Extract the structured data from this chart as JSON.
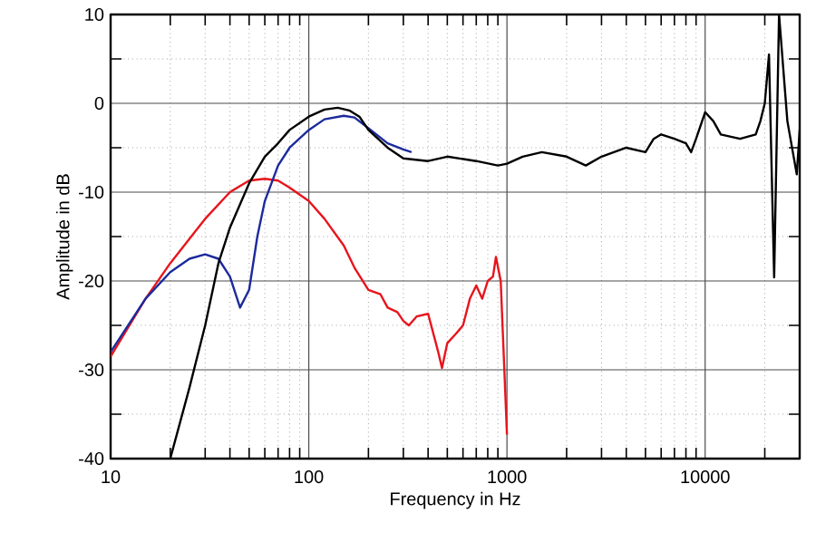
{
  "chart_data": {
    "type": "line",
    "xlabel": "Frequency in Hz",
    "ylabel": "Amplitude in dB",
    "log": "x",
    "xlim": [
      10,
      30000
    ],
    "xticks": [
      10,
      100,
      1000,
      10000
    ],
    "ylim": [
      -40,
      10
    ],
    "yticks": [
      -40,
      -30,
      -20,
      -10,
      0,
      10
    ],
    "grid": true,
    "marker": "none",
    "line_style": "solid",
    "series": [
      {
        "color": "#e8141c",
        "x": [
          10,
          15,
          20,
          30,
          40,
          50,
          60,
          70,
          80,
          100,
          120,
          150,
          170,
          200,
          230,
          250,
          280,
          300,
          320,
          350,
          400,
          450,
          470,
          500,
          550,
          600,
          650,
          700,
          750,
          800,
          850,
          880,
          930,
          970,
          1000
        ],
        "values": [
          -28.5,
          -22,
          -18,
          -13,
          -10,
          -8.7,
          -8.5,
          -8.7,
          -9.5,
          -11,
          -13,
          -16,
          -18.5,
          -21,
          -21.5,
          -23,
          -23.5,
          -24.5,
          -25,
          -24,
          -23.7,
          -28,
          -29.8,
          -27,
          -26,
          -25,
          -22,
          -20.5,
          -22,
          -20,
          -19.5,
          -17.3,
          -20,
          -30,
          -37.3
        ]
      },
      {
        "color": "#1c2a9c",
        "x": [
          10,
          15,
          20,
          25,
          30,
          35,
          40,
          45,
          50,
          55,
          60,
          70,
          80,
          100,
          120,
          150,
          170,
          200,
          250,
          300,
          330
        ],
        "values": [
          -28,
          -22,
          -19,
          -17.5,
          -17,
          -17.5,
          -19.5,
          -23,
          -21,
          -15,
          -11,
          -7,
          -5,
          -3,
          -1.8,
          -1.4,
          -1.6,
          -2.8,
          -4.5,
          -5.2,
          -5.5
        ]
      },
      {
        "color": "#000000",
        "x": [
          20,
          25,
          30,
          35,
          40,
          50,
          60,
          70,
          80,
          100,
          120,
          140,
          160,
          180,
          200,
          250,
          300,
          400,
          500,
          700,
          900,
          1000,
          1200,
          1500,
          2000,
          2500,
          3000,
          4000,
          5000,
          5500,
          6000,
          7000,
          8000,
          8500,
          9000,
          10000,
          11000,
          12000,
          15000,
          18000,
          19000,
          20000,
          21000,
          22300,
          23600,
          26000,
          29000,
          30000
        ],
        "values": [
          -40,
          -32,
          -25,
          -18,
          -14,
          -9,
          -6,
          -4.5,
          -3,
          -1.5,
          -0.7,
          -0.5,
          -0.8,
          -1.5,
          -3,
          -5,
          -6.2,
          -6.5,
          -6,
          -6.5,
          -7,
          -6.8,
          -6,
          -5.5,
          -6,
          -7,
          -6,
          -5,
          -5.5,
          -4,
          -3.5,
          -4,
          -4.5,
          -5.5,
          -4,
          -1,
          -2,
          -3.5,
          -4,
          -3.5,
          -2,
          0,
          5.5,
          -19.6,
          10,
          -2,
          -8,
          -3
        ]
      }
    ]
  }
}
